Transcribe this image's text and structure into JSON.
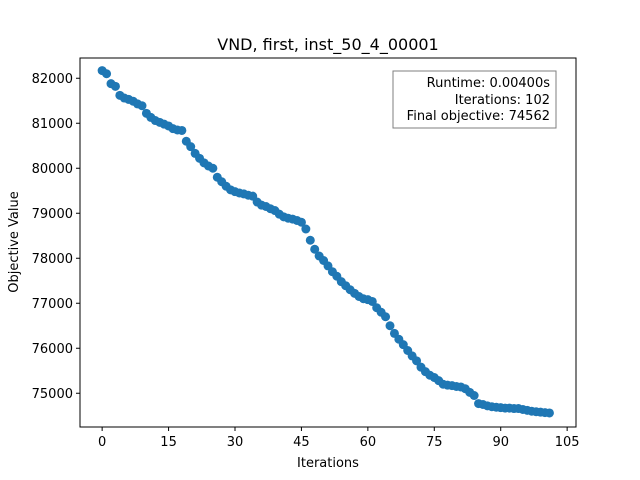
{
  "chart_data": {
    "type": "scatter",
    "title": "VND, first, inst_50_4_00001",
    "xlabel": "Iterations",
    "ylabel": "Objective Value",
    "xlim": [
      -5,
      107
    ],
    "ylim": [
      74250,
      82450
    ],
    "xticks": [
      0,
      15,
      30,
      45,
      60,
      75,
      90,
      105
    ],
    "yticks": [
      75000,
      76000,
      77000,
      78000,
      79000,
      80000,
      81000,
      82000
    ],
    "grid": false,
    "marker_color": "#1f77b4",
    "info_box": {
      "position": "top-right",
      "lines": [
        "Runtime: 0.00400s",
        "Iterations: 102",
        "Final objective: 74562"
      ]
    },
    "x": [
      0,
      1,
      2,
      3,
      4,
      5,
      6,
      7,
      8,
      9,
      10,
      11,
      12,
      13,
      14,
      15,
      16,
      17,
      18,
      19,
      20,
      21,
      22,
      23,
      24,
      25,
      26,
      27,
      28,
      29,
      30,
      31,
      32,
      33,
      34,
      35,
      36,
      37,
      38,
      39,
      40,
      41,
      42,
      43,
      44,
      45,
      46,
      47,
      48,
      49,
      50,
      51,
      52,
      53,
      54,
      55,
      56,
      57,
      58,
      59,
      60,
      61,
      62,
      63,
      64,
      65,
      66,
      67,
      68,
      69,
      70,
      71,
      72,
      73,
      74,
      75,
      76,
      77,
      78,
      79,
      80,
      81,
      82,
      83,
      84,
      85,
      86,
      87,
      88,
      89,
      90,
      91,
      92,
      93,
      94,
      95,
      96,
      97,
      98,
      99,
      100,
      101
    ],
    "y": [
      82170,
      82100,
      81880,
      81820,
      81620,
      81560,
      81530,
      81490,
      81430,
      81390,
      81220,
      81130,
      81060,
      81020,
      80980,
      80940,
      80880,
      80850,
      80840,
      80600,
      80480,
      80330,
      80220,
      80120,
      80050,
      80000,
      79800,
      79700,
      79600,
      79520,
      79480,
      79450,
      79430,
      79400,
      79380,
      79250,
      79180,
      79150,
      79100,
      79060,
      78980,
      78920,
      78890,
      78870,
      78840,
      78800,
      78650,
      78400,
      78200,
      78050,
      77950,
      77830,
      77700,
      77600,
      77480,
      77390,
      77300,
      77220,
      77150,
      77100,
      77080,
      77040,
      76900,
      76800,
      76700,
      76500,
      76330,
      76200,
      76080,
      75950,
      75830,
      75720,
      75580,
      75480,
      75400,
      75350,
      75280,
      75200,
      75180,
      75170,
      75150,
      75140,
      75100,
      75020,
      74950,
      74770,
      74750,
      74720,
      74700,
      74690,
      74680,
      74670,
      74670,
      74660,
      74660,
      74640,
      74620,
      74600,
      74590,
      74580,
      74570,
      74562
    ]
  }
}
